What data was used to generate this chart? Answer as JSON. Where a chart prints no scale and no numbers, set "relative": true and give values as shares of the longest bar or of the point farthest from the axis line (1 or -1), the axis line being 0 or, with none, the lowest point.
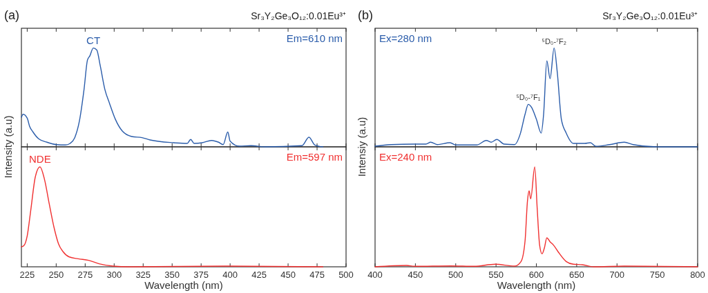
{
  "chart_data": [
    {
      "type": "line",
      "title": "(a)",
      "subtitle": "Sr₃Y₂Ge₃O₁₂:0.01Eu³⁺",
      "ylabel": "Intensity (a.u)",
      "relative": true,
      "legend": "top right",
      "tick_labels": false,
      "xlim": [
        220,
        500
      ],
      "xticks": [
        225,
        250,
        275,
        300,
        325,
        350,
        375,
        400,
        425,
        450,
        475,
        500
      ],
      "annotations": [
        {
          "text": "CT",
          "x": 282,
          "y": 1
        }
      ],
      "series": [
        {
          "name": "Em=610 nm",
          "color": "#2a5caa",
          "x": [
            220,
            221.5,
            225,
            227,
            230,
            235,
            242,
            250,
            258,
            262,
            266,
            270,
            274,
            277,
            279,
            282,
            285,
            288,
            292,
            296,
            301,
            307,
            315,
            324,
            331,
            351,
            363,
            366,
            369,
            376,
            384,
            390,
            394,
            398,
            400,
            408,
            418,
            430,
            462,
            468,
            473,
            480
          ],
          "values": [
            0.3,
            0.33,
            0.29,
            0.21,
            0.15,
            0.08,
            0.047,
            0.023,
            0.019,
            0.035,
            0.093,
            0.26,
            0.58,
            0.88,
            0.92,
            1,
            0.98,
            0.82,
            0.58,
            0.44,
            0.28,
            0.16,
            0.105,
            0.093,
            0.07,
            0.042,
            0.035,
            0.075,
            0.035,
            0.042,
            0.065,
            0.047,
            0.023,
            0.15,
            0.058,
            0.007,
            0.012,
            0,
            0.012,
            0.098,
            0.019,
            0
          ]
        }
      ]
    },
    {
      "type": "line",
      "xlabel": "Wavelength (nm)",
      "relative": true,
      "legend": "top right",
      "xlim": [
        220,
        500
      ],
      "xticks": [
        225,
        250,
        275,
        300,
        325,
        350,
        375,
        400,
        425,
        450,
        475,
        500
      ],
      "annotations": [
        {
          "text": "NDE",
          "x": 236,
          "y": 1
        }
      ],
      "series": [
        {
          "name": "Em=597 nm",
          "color": "#f03030",
          "x": [
            220,
            222,
            225,
            228,
            232,
            236,
            240,
            244,
            248,
            252,
            256,
            261,
            269,
            278,
            287,
            299,
            313,
            398,
            480
          ],
          "values": [
            0.2,
            0.21,
            0.31,
            0.56,
            0.9,
            1,
            0.87,
            0.63,
            0.4,
            0.23,
            0.15,
            0.1,
            0.08,
            0.065,
            0.03,
            0.007,
            0,
            0.007,
            0
          ]
        }
      ]
    },
    {
      "type": "line",
      "title": "(b)",
      "subtitle": "Sr₃Y₂Ge₃O₁₂:0.01Eu³⁺",
      "ylabel": "Intensiy (a.u)",
      "relative": true,
      "legend": "top left",
      "tick_labels": false,
      "xlim": [
        400,
        800
      ],
      "xticks": [
        400,
        450,
        500,
        550,
        600,
        650,
        700,
        750,
        800
      ],
      "annotations": [
        {
          "text": "⁵D₀-⁷F₁",
          "x": 590,
          "y": 0.43
        },
        {
          "text": "⁵D₀-⁷F₂",
          "x": 622,
          "y": 1
        }
      ],
      "series": [
        {
          "name": "Ex=280 nm",
          "color": "#2a5caa",
          "x": [
            400,
            420,
            449,
            463,
            469,
            477,
            493,
            500,
            526,
            538,
            544,
            551,
            560,
            573,
            580,
            586,
            590,
            594,
            600,
            606,
            609,
            613,
            617,
            622,
            626,
            631,
            637,
            646,
            660,
            667,
            674,
            691,
            709,
            720,
            749,
            800
          ],
          "values": [
            0.007,
            0.023,
            0.028,
            0.028,
            0.047,
            0.023,
            0.042,
            0.019,
            0.019,
            0.065,
            0.047,
            0.075,
            0.028,
            0.023,
            0.13,
            0.33,
            0.43,
            0.4,
            0.28,
            0.14,
            0.33,
            0.87,
            0.69,
            1,
            0.75,
            0.28,
            0.14,
            0.035,
            0.035,
            0.042,
            0.005,
            0.023,
            0.047,
            0.023,
            0,
            0
          ]
        }
      ]
    },
    {
      "type": "line",
      "xlabel": "Wavelength (nm)",
      "relative": true,
      "legend": "top left",
      "xlim": [
        400,
        800
      ],
      "xticks": [
        400,
        450,
        500,
        550,
        600,
        650,
        700,
        750,
        800
      ],
      "series": [
        {
          "name": "Ex=240 nm",
          "color": "#f03030",
          "x": [
            400,
            439,
            449,
            494,
            523,
            549,
            573,
            581,
            586,
            589,
            591,
            593,
            598,
            601,
            604,
            607,
            610,
            613,
            617,
            621,
            627,
            637,
            646,
            657,
            671,
            709,
            800
          ],
          "values": [
            0,
            0.014,
            0.005,
            0.009,
            0.005,
            0.026,
            0.007,
            0.053,
            0.26,
            0.66,
            0.76,
            0.68,
            1,
            0.59,
            0.22,
            0.13,
            0.19,
            0.29,
            0.25,
            0.22,
            0.15,
            0.053,
            0.026,
            0.021,
            0,
            0.007,
            0
          ]
        }
      ]
    }
  ]
}
